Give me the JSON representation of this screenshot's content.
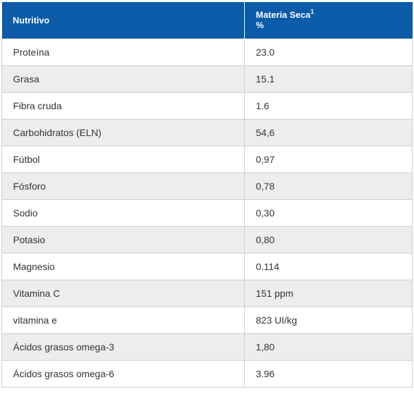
{
  "table": {
    "headers": {
      "nutrient": "Nutritivo",
      "dry_matter": "Materia Seca",
      "dry_matter_sup": "1",
      "dry_matter_unit": "%"
    },
    "rows": [
      {
        "nutrient": "Proteína",
        "value": "23.0"
      },
      {
        "nutrient": "Grasa",
        "value": "15.1"
      },
      {
        "nutrient": "Fibra cruda",
        "value": "1.6"
      },
      {
        "nutrient": "Carbohidratos (ELN)",
        "value": "54,6"
      },
      {
        "nutrient": "Fútbol",
        "value": "0,97"
      },
      {
        "nutrient": "Fósforo",
        "value": "0,78"
      },
      {
        "nutrient": "Sodio",
        "value": "0,30"
      },
      {
        "nutrient": "Potasio",
        "value": "0,80"
      },
      {
        "nutrient": "Magnesio",
        "value": "0.114"
      },
      {
        "nutrient": "Vitamina C",
        "value": "151 ppm"
      },
      {
        "nutrient": "vitamina e",
        "value": "823 UI/kg"
      },
      {
        "nutrient": "Ácidos grasos omega-3",
        "value": "1,80"
      },
      {
        "nutrient": "Ácidos grasos omega-6",
        "value": "3.96"
      }
    ]
  },
  "colors": {
    "header_bg": "#0b5ba8",
    "header_text": "#ffffff",
    "row_alt_bg": "#ededed",
    "border": "#cfcfcf",
    "body_text": "#333333"
  }
}
